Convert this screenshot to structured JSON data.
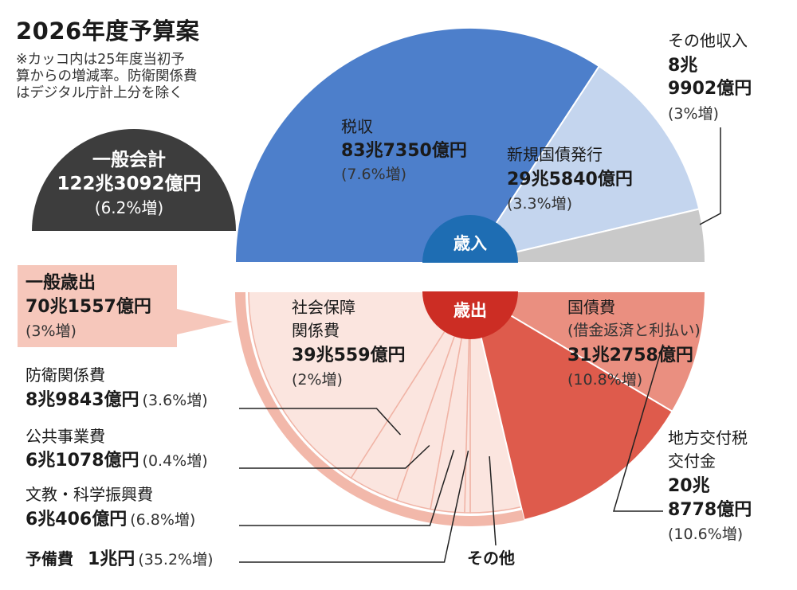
{
  "header": {
    "title": "2026年度予算案",
    "note_lines": [
      "※カッコ内は25年度当初予",
      "算からの増減率。防衛関係費",
      "はデジタル庁計上分を除く"
    ]
  },
  "general_account": {
    "label": "一般会計",
    "value": "122兆3092億円",
    "change": "(6.2%増)"
  },
  "general_expenditure": {
    "label": "一般歳出",
    "value": "70兆1557億円",
    "change": "(3%増)"
  },
  "colors": {
    "revenue_tax": "#4d7fcb",
    "revenue_bond": "#c4d5ee",
    "revenue_other": "#c9c9c9",
    "revenue_badge": "#1e6db3",
    "expense_badge": "#cc2d24",
    "expense_debt": "#de5b4c",
    "expense_local": "#ea8f80",
    "expense_light": "#fbe5df",
    "expense_band": "#f2b8aa",
    "general_account_bg": "#3d3d3d"
  },
  "chart_data": [
    {
      "type": "pie",
      "title": "歳入",
      "total_label": "一般会計 122兆3092億円",
      "slices": [
        {
          "name": "税収",
          "value_label": "83兆7350億円",
          "change": "(7.6%増)",
          "value": 83.735
        },
        {
          "name": "新規国債発行",
          "value_label": "29兆5840億円",
          "change": "(3.3%増)",
          "value": 29.584
        },
        {
          "name": "その他収入",
          "value_label": "8兆9902億円",
          "change": "(3%増)",
          "value": 8.9902
        }
      ]
    },
    {
      "type": "pie",
      "title": "歳出",
      "slices": [
        {
          "name": "社会保障関係費",
          "value_label": "39兆559億円",
          "change": "(2%増)",
          "value": 39.0559
        },
        {
          "name": "防衛関係費",
          "value_label": "8兆9843億円",
          "change": "(3.6%増)",
          "value": 8.9843
        },
        {
          "name": "公共事業費",
          "value_label": "6兆1078億円",
          "change": "(0.4%増)",
          "value": 6.1078
        },
        {
          "name": "文教・科学振興費",
          "value_label": "6兆406億円",
          "change": "(6.8%増)",
          "value": 6.0406
        },
        {
          "name": "予備費",
          "value_label": "1兆円",
          "change": "(35.2%増)",
          "value": 1.0
        },
        {
          "name": "その他",
          "value": 9.0
        },
        {
          "name": "国債費",
          "sublabel": "(借金返済と利払い)",
          "value_label": "31兆2758億円",
          "change": "(10.8%増)",
          "value": 31.2758
        },
        {
          "name": "地方交付税交付金",
          "value_label": "20兆8778億円",
          "change": "(10.6%増)",
          "value": 20.8778
        }
      ]
    }
  ],
  "labels": {
    "revenue_badge": "歳入",
    "expense_badge": "歳出",
    "tax_name": "税収",
    "tax_value": "83兆7350億円",
    "tax_change": "(7.6%増)",
    "bond_name": "新規国債発行",
    "bond_value": "29兆5840億円",
    "bond_change": "(3.3%増)",
    "other_rev_name": "その他収入",
    "other_rev_v1": "8兆",
    "other_rev_v2": "9902億円",
    "other_rev_change": "(3%増)",
    "social_l1": "社会保障",
    "social_l2": "関係費",
    "social_value": "39兆559億円",
    "social_change": "(2%増)",
    "debt_name": "国債費",
    "debt_sub": "(借金返済と利払い)",
    "debt_value": "31兆2758億円",
    "debt_change": "(10.8%増)",
    "local_l1": "地方交付税",
    "local_l2": "交付金",
    "local_v1": "20兆",
    "local_v2": "8778億円",
    "local_change": "(10.6%増)",
    "defense_name": "防衛関係費",
    "defense_value": "8兆9843億円",
    "defense_change": "(3.6%増)",
    "public_name": "公共事業費",
    "public_value": "6兆1078億円",
    "public_change": "(0.4%増)",
    "edu_name": "文教・科学振興費",
    "edu_value": "6兆406億円",
    "edu_change": "(6.8%増)",
    "reserve_name": "予備費",
    "reserve_value": "1兆円",
    "reserve_change": "(35.2%増)",
    "other_exp_name": "その他"
  }
}
